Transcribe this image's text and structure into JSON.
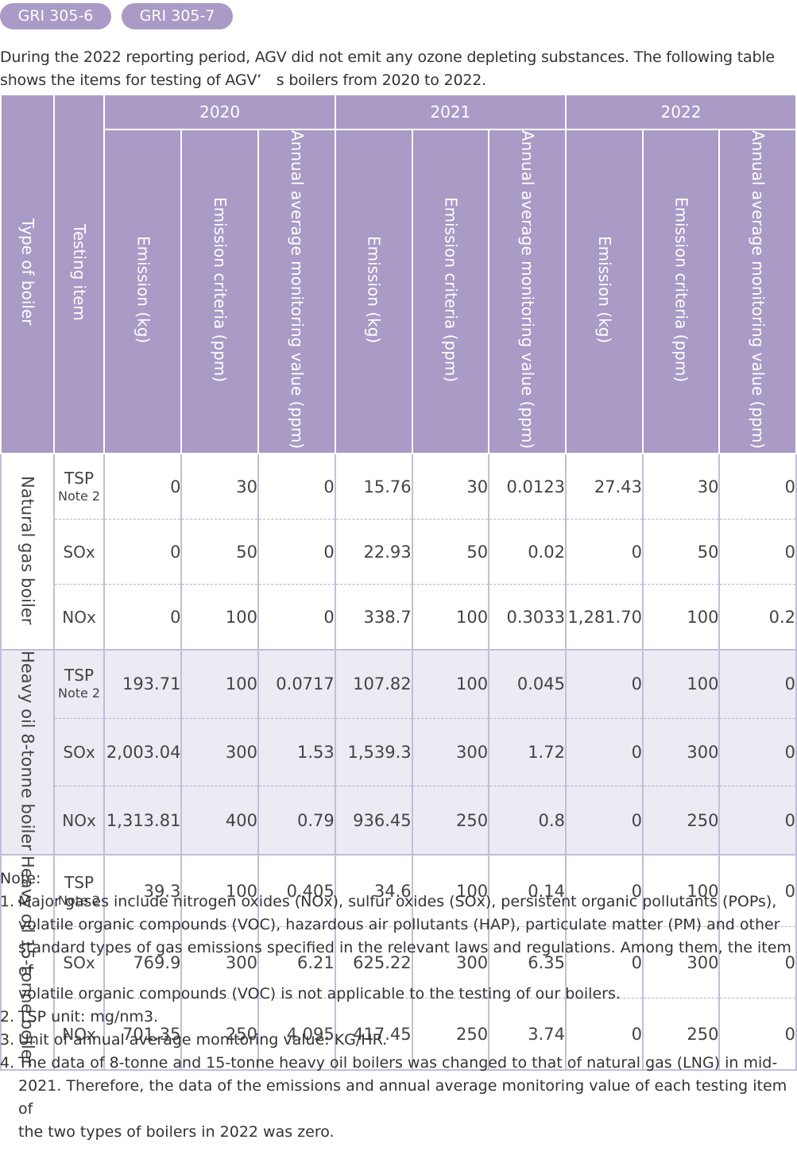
{
  "tags": [
    "GRI 305-6",
    "GRI 305-7"
  ],
  "intro": [
    "During the 2022 reporting period, AGV did not emit any ozone depleting substances. The following table",
    "shows the items for testing of AGV’ s boilers from 2020 to 2022."
  ],
  "table": {
    "col_type": "Type of boiler",
    "col_item": "Testing item",
    "years": [
      "2020",
      "2021",
      "2022"
    ],
    "sub_headers": [
      "Emission (kg)",
      "Emission criteria (ppm)",
      "Annual average monitoring value (ppm)"
    ],
    "groups": [
      {
        "boiler": "Natural gas boiler",
        "rows": [
          {
            "item": "TSP",
            "note": "Note 2",
            "values": [
              "0",
              "30",
              "0",
              "15.76",
              "30",
              "0.0123",
              "27.43",
              "30",
              "0"
            ]
          },
          {
            "item": "SOx",
            "note": "",
            "values": [
              "0",
              "50",
              "0",
              "22.93",
              "50",
              "0.02",
              "0",
              "50",
              "0"
            ]
          },
          {
            "item": "NOx",
            "note": "",
            "values": [
              "0",
              "100",
              "0",
              "338.7",
              "100",
              "0.3033",
              "1,281.70",
              "100",
              "0.2"
            ]
          }
        ]
      },
      {
        "boiler": "Heavy oil 8-tonne boiler",
        "rows": [
          {
            "item": "TSP",
            "note": "Note 2",
            "values": [
              "193.71",
              "100",
              "0.0717",
              "107.82",
              "100",
              "0.045",
              "0",
              "100",
              "0"
            ]
          },
          {
            "item": "SOx",
            "note": "",
            "values": [
              "2,003.04",
              "300",
              "1.53",
              "1,539.3",
              "300",
              "1.72",
              "0",
              "300",
              "0"
            ]
          },
          {
            "item": "NOx",
            "note": "",
            "values": [
              "1,313.81",
              "400",
              "0.79",
              "936.45",
              "250",
              "0.8",
              "0",
              "250",
              "0"
            ]
          }
        ]
      },
      {
        "boiler": "Heavy oil 15-tonne boiler",
        "rows": [
          {
            "item": "TSP",
            "note": "Note 2",
            "values": [
              "39.3",
              "100",
              "0.405",
              "34.6",
              "100",
              "0.14",
              "0",
              "100",
              "0"
            ]
          },
          {
            "item": "SOx",
            "note": "",
            "values": [
              "769.9",
              "300",
              "6.21",
              "625.22",
              "300",
              "6.35",
              "0",
              "300",
              "0"
            ]
          },
          {
            "item": "NOx",
            "note": "",
            "values": [
              "701.35",
              "250",
              "4.095",
              "417.45",
              "250",
              "3.74",
              "0",
              "250",
              "0"
            ]
          }
        ]
      }
    ]
  },
  "notes": {
    "heading": "Note:",
    "items": [
      {
        "num": "1.",
        "lines": [
          "Major gases include nitrogen oxides (NOx), sulfur oxides (SOx), persistent organic pollutants (POPs),",
          "volatile organic compounds (VOC), hazardous air pollutants (HAP), particulate matter (PM) and other",
          "standard types of gas emissions specified in the relevant laws and regulations. Among them, the item of",
          "volatile organic compounds (VOC) is not applicable to the testing of our boilers."
        ]
      },
      {
        "num": "2.",
        "lines": [
          "TSP unit: mg/nm3."
        ]
      },
      {
        "num": "3.",
        "lines": [
          "Unit of annual average monitoring value: KG/HR."
        ]
      },
      {
        "num": "4.",
        "lines": [
          "The data of 8-tonne and 15-tonne heavy oil boilers was changed to that of natural gas (LNG) in mid-",
          "2021. Therefore, the data of the emissions and annual average monitoring value of each testing item of",
          "the two types of boilers in 2022 was zero."
        ]
      }
    ]
  }
}
